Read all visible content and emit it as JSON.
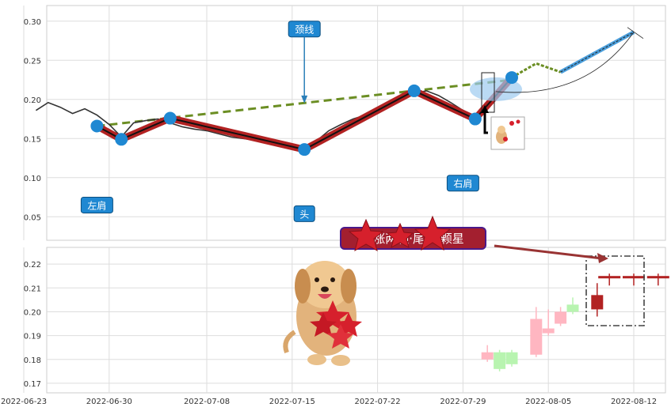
{
  "chart_data": [
    {
      "type": "line",
      "title": "",
      "xlabel": "",
      "ylabel": "",
      "ylim": [
        0.02,
        0.32
      ],
      "yticks": [
        "0.05",
        "0.10",
        "0.15",
        "0.20",
        "0.25",
        "0.30"
      ],
      "grid": true,
      "series": [
        {
          "x": [
            "2022-06-24",
            "2022-06-25",
            "2022-06-26",
            "2022-06-27",
            "2022-06-28",
            "2022-06-29",
            "2022-06-30",
            "2022-07-01",
            "2022-07-02",
            "2022-07-03",
            "2022-07-04",
            "2022-07-05",
            "2022-07-06",
            "2022-07-07",
            "2022-07-08",
            "2022-07-09",
            "2022-07-10",
            "2022-07-11",
            "2022-07-12",
            "2022-07-13",
            "2022-07-14",
            "2022-07-15",
            "2022-07-16",
            "2022-07-17",
            "2022-07-18",
            "2022-07-19",
            "2022-07-20",
            "2022-07-21",
            "2022-07-22",
            "2022-07-23",
            "2022-07-24",
            "2022-07-25",
            "2022-07-26",
            "2022-07-27",
            "2022-07-28",
            "2022-07-29",
            "2022-07-30",
            "2022-07-31",
            "2022-08-01",
            "2022-08-02"
          ],
          "values": [
            0.186,
            0.196,
            0.19,
            0.182,
            0.188,
            0.18,
            0.168,
            0.152,
            0.17,
            0.173,
            0.175,
            0.17,
            0.165,
            0.162,
            0.16,
            0.156,
            0.152,
            0.15,
            0.148,
            0.146,
            0.142,
            0.14,
            0.138,
            0.147,
            0.16,
            0.168,
            0.175,
            0.18,
            0.188,
            0.195,
            0.202,
            0.208,
            0.211,
            0.205,
            0.196,
            0.186,
            0.178,
            0.19,
            0.21,
            0.228
          ]
        }
      ],
      "pattern_points": [
        {
          "x": "2022-06-29",
          "y": 0.166
        },
        {
          "x": "2022-07-01",
          "y": 0.149
        },
        {
          "x": "2022-07-05",
          "y": 0.176
        },
        {
          "x": "2022-07-16",
          "y": 0.136
        },
        {
          "x": "2022-07-25",
          "y": 0.211
        },
        {
          "x": "2022-07-30",
          "y": 0.175
        },
        {
          "x": "2022-08-02",
          "y": 0.228
        }
      ],
      "neckline": [
        {
          "x": "2022-06-29",
          "y": 0.166
        },
        {
          "x": "2022-08-02",
          "y": 0.225
        }
      ],
      "projection_green": [
        {
          "x": "2022-08-02",
          "y": 0.228
        },
        {
          "x": "2022-08-04",
          "y": 0.246
        },
        {
          "x": "2022-08-06",
          "y": 0.235
        }
      ],
      "projection_blue": [
        {
          "x": "2022-08-06",
          "y": 0.235
        },
        {
          "x": "2022-08-12",
          "y": 0.286
        }
      ],
      "annotations": [
        {
          "label": "颈线",
          "x": "2022-07-16",
          "y": 0.29
        },
        {
          "label": "左肩",
          "x": "2022-06-29",
          "y": 0.065
        },
        {
          "label": "头",
          "x": "2022-07-16",
          "y": 0.054
        },
        {
          "label": "右肩",
          "x": "2022-07-29",
          "y": 0.093
        }
      ]
    },
    {
      "type": "candlestick",
      "title": "",
      "xlabel": "",
      "ylabel": "",
      "ylim": [
        0.166,
        0.227
      ],
      "yticks": [
        "0.17",
        "0.18",
        "0.19",
        "0.20",
        "0.21",
        "0.22"
      ],
      "xticks": [
        "2022-06-23",
        "2022-06-30",
        "2022-07-08",
        "2022-07-15",
        "2022-07-22",
        "2022-07-29",
        "2022-08-05",
        "2022-08-12"
      ],
      "grid": true,
      "candles": [
        {
          "x": "2022-07-31",
          "open": 0.18,
          "high": 0.186,
          "low": 0.179,
          "close": 0.183,
          "color": "#ffb6c1"
        },
        {
          "x": "2022-08-01",
          "open": 0.183,
          "high": 0.184,
          "low": 0.175,
          "close": 0.176,
          "color": "#b8f4b0"
        },
        {
          "x": "2022-08-02",
          "open": 0.183,
          "high": 0.184,
          "low": 0.177,
          "close": 0.178,
          "color": "#b8f4b0"
        },
        {
          "x": "2022-08-04",
          "open": 0.182,
          "high": 0.202,
          "low": 0.181,
          "close": 0.197,
          "color": "#ffb6c1"
        },
        {
          "x": "2022-08-05",
          "open": 0.191,
          "high": 0.201,
          "low": 0.19,
          "close": 0.193,
          "color": "#ffb6c1"
        },
        {
          "x": "2022-08-06",
          "open": 0.195,
          "high": 0.202,
          "low": 0.194,
          "close": 0.2,
          "color": "#ffb6c1"
        },
        {
          "x": "2022-08-07",
          "open": 0.2,
          "high": 0.206,
          "low": 0.199,
          "close": 0.203,
          "color": "#b8f4b0"
        },
        {
          "x": "2022-08-09",
          "open": 0.201,
          "high": 0.212,
          "low": 0.198,
          "close": 0.207,
          "color": "#b22222"
        },
        {
          "x": "2022-08-10",
          "open": 0.214,
          "high": 0.216,
          "low": 0.211,
          "close": 0.215,
          "color": "#b22222"
        },
        {
          "x": "2022-08-12",
          "open": 0.214,
          "high": 0.216,
          "low": 0.211,
          "close": 0.215,
          "color": "#b22222"
        },
        {
          "x": "2022-08-14",
          "open": 0.214,
          "high": 0.216,
          "low": 0.211,
          "close": 0.215,
          "color": "#b22222"
        }
      ],
      "annotations": [
        {
          "label": "上涨两颗·尾·三颗星"
        }
      ]
    }
  ],
  "colors": {
    "price_line": "#333333",
    "pattern_line": "#b22222",
    "marker": "#1f88d2",
    "neckline": "#6b8e23",
    "projection_blue": "#4a9edb",
    "label_bg": "#1f88d2",
    "banner_bg": "#a31f2f",
    "banner_border": "#4b1a8a"
  },
  "icons": [
    "dog-icon",
    "star-icon",
    "mini-dog-icon"
  ]
}
